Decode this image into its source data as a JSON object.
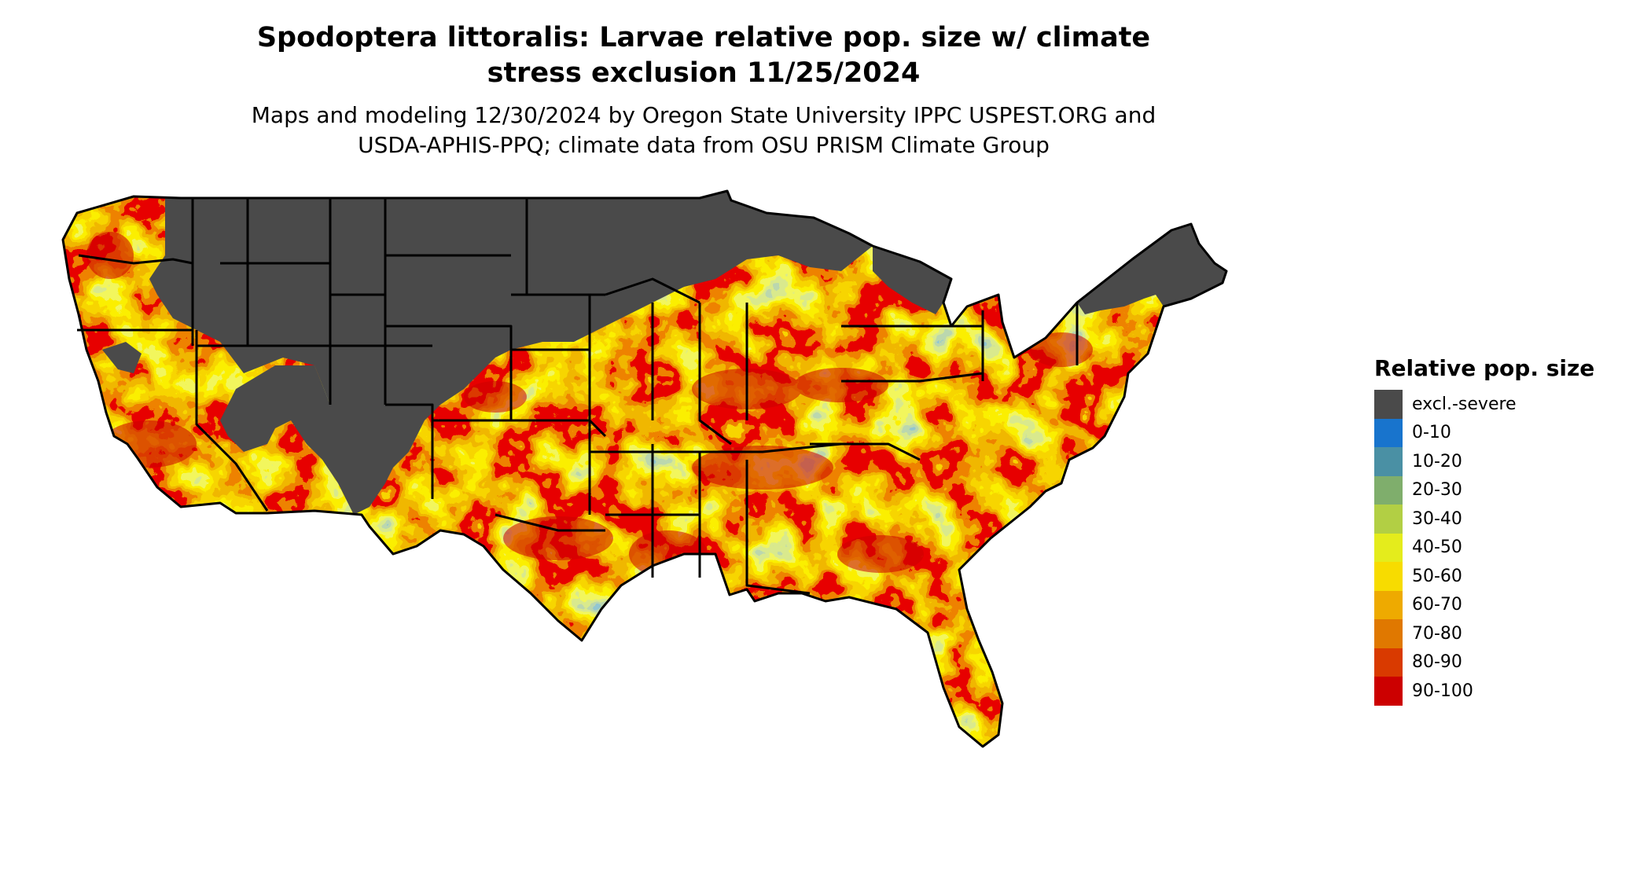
{
  "title": {
    "line1": "Spodoptera littoralis: Larvae relative pop. size w/ climate",
    "line2": "stress exclusion 11/25/2024"
  },
  "subtitle": {
    "line1": "Maps and modeling 12/30/2024 by Oregon State University IPPC USPEST.ORG and",
    "line2": "USDA-APHIS-PPQ; climate data from OSU PRISM Climate Group"
  },
  "legend": {
    "title": "Relative pop. size",
    "items": [
      {
        "label": "excl.-severe",
        "color": "#4a4a4a"
      },
      {
        "label": "0-10",
        "color": "#1874cd"
      },
      {
        "label": "10-20",
        "color": "#4a90a4"
      },
      {
        "label": "20-30",
        "color": "#7fae6c"
      },
      {
        "label": "30-40",
        "color": "#b2cf44"
      },
      {
        "label": "40-50",
        "color": "#e4ec1c"
      },
      {
        "label": "50-60",
        "color": "#f7dc00"
      },
      {
        "label": "60-70",
        "color": "#eeaa00"
      },
      {
        "label": "70-80",
        "color": "#e07800"
      },
      {
        "label": "80-90",
        "color": "#d93a00"
      },
      {
        "label": "90-100",
        "color": "#cc0000"
      }
    ]
  },
  "map": {
    "region": "contiguous-united-states",
    "boundary_color": "#000000",
    "land_color": "#2f86c6",
    "excluded_color": "#4a4a4a"
  }
}
